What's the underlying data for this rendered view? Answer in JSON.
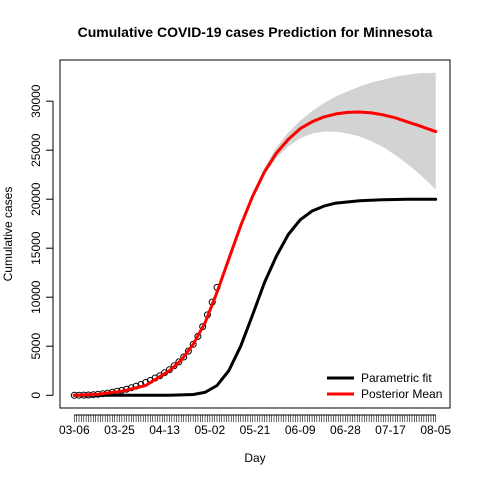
{
  "chart_data": {
    "type": "line",
    "title": "Cumulative COVID-19 cases Prediction for Minnesota",
    "xlabel": "Day",
    "ylabel": "Cumulative cases",
    "x_tick_labels": [
      "03-06",
      "03-25",
      "04-13",
      "05-02",
      "05-21",
      "06-09",
      "06-28",
      "07-17",
      "08-05"
    ],
    "x_tick_day_index": [
      0,
      19,
      38,
      57,
      76,
      95,
      114,
      133,
      152
    ],
    "y_ticks": [
      0,
      5000,
      10000,
      15000,
      20000,
      25000,
      30000
    ],
    "xlim_day_index": [
      -6,
      158
    ],
    "ylim": [
      -1300,
      34200
    ],
    "legend": {
      "placement": "bottom-right"
    },
    "colors": {
      "parametric": "#000000",
      "posterior": "#ff0000",
      "band": "#d3d3d3",
      "points": "#000000"
    },
    "series": [
      {
        "name": "Parametric fit",
        "color": "#000000",
        "x_day_index": [
          0,
          20,
          40,
          50,
          55,
          60,
          65,
          70,
          75,
          80,
          85,
          90,
          95,
          100,
          105,
          110,
          120,
          130,
          140,
          152
        ],
        "y": [
          0,
          0,
          0,
          80,
          300,
          1000,
          2500,
          5000,
          8200,
          11500,
          14200,
          16400,
          17900,
          18800,
          19300,
          19600,
          19850,
          19950,
          20000,
          20000
        ]
      },
      {
        "name": "Posterior Mean",
        "color": "#ff0000",
        "x_day_index": [
          0,
          10,
          20,
          30,
          40,
          45,
          50,
          55,
          60,
          65,
          70,
          75,
          80,
          85,
          90,
          95,
          100,
          105,
          110,
          115,
          120,
          125,
          130,
          135,
          140,
          145,
          152
        ],
        "y": [
          0,
          100,
          400,
          1000,
          2500,
          3600,
          5200,
          7400,
          10500,
          13900,
          17300,
          20300,
          22800,
          24700,
          26100,
          27200,
          27900,
          28400,
          28700,
          28850,
          28900,
          28800,
          28600,
          28300,
          27900,
          27500,
          26900
        ]
      }
    ],
    "band": {
      "x_day_index": [
        70,
        75,
        80,
        85,
        90,
        95,
        100,
        105,
        110,
        115,
        120,
        125,
        130,
        135,
        140,
        145,
        152
      ],
      "upper": [
        17500,
        20600,
        23200,
        25300,
        26800,
        28000,
        29000,
        29800,
        30500,
        31000,
        31500,
        31900,
        32200,
        32500,
        32700,
        32850,
        32900
      ],
      "lower": [
        17100,
        20000,
        22500,
        24200,
        25400,
        26200,
        26700,
        26900,
        26900,
        26700,
        26400,
        25900,
        25300,
        24500,
        23600,
        22600,
        21000
      ]
    },
    "observed_points": {
      "x_day_index": [
        0,
        2,
        4,
        6,
        8,
        10,
        12,
        14,
        16,
        18,
        20,
        22,
        24,
        26,
        28,
        30,
        32,
        34,
        36,
        38,
        40,
        42,
        44,
        46,
        48,
        50,
        52,
        54,
        56,
        58,
        60
      ],
      "y": [
        0,
        5,
        15,
        30,
        60,
        100,
        150,
        220,
        300,
        400,
        500,
        620,
        760,
        920,
        1100,
        1300,
        1520,
        1760,
        2000,
        2300,
        2600,
        3000,
        3400,
        3900,
        4500,
        5200,
        6000,
        7000,
        8200,
        9500,
        11000
      ]
    }
  }
}
